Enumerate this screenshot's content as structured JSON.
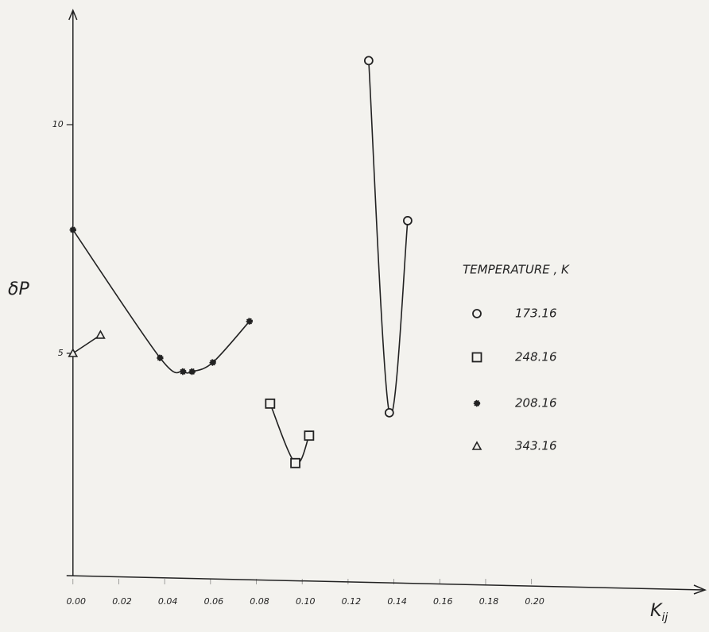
{
  "chart_data": {
    "type": "scatter",
    "y_label": "δP",
    "x_label": "K",
    "x_label_sub": "ij",
    "legend_title": "TEMPERATURE , K",
    "xlim": [
      -0.002,
      0.275
    ],
    "ylim": [
      0,
      12.5
    ],
    "xticks": [
      {
        "value": 0,
        "label": "0.00"
      },
      {
        "value": 0.02,
        "label": "0.02"
      },
      {
        "value": 0.04,
        "label": "0.04"
      },
      {
        "value": 0.06,
        "label": "0.06"
      },
      {
        "value": 0.08,
        "label": "0.08"
      },
      {
        "value": 0.1,
        "label": "0.10"
      },
      {
        "value": 0.12,
        "label": "0.12"
      },
      {
        "value": 0.14,
        "label": "0.14"
      },
      {
        "value": 0.16,
        "label": "0.16"
      },
      {
        "value": 0.18,
        "label": "0.18"
      },
      {
        "value": 0.2,
        "label": "0.20"
      }
    ],
    "yticks": [
      5,
      10
    ],
    "series": [
      {
        "name": "173.16",
        "marker": "circle",
        "color": "#222",
        "x": [
          0.129,
          0.138,
          0.146
        ],
        "values": [
          11.4,
          3.7,
          7.9
        ]
      },
      {
        "name": "248.16",
        "marker": "square",
        "color": "#222",
        "x": [
          0.086,
          0.097,
          0.103
        ],
        "values": [
          3.9,
          2.6,
          3.2
        ]
      },
      {
        "name": "208.16",
        "marker": "star",
        "color": "#222",
        "x": [
          0.0,
          0.038,
          0.048,
          0.052,
          0.061,
          0.077
        ],
        "values": [
          7.7,
          4.9,
          4.6,
          4.6,
          4.8,
          5.7
        ]
      },
      {
        "name": "343.16",
        "marker": "triangle",
        "color": "#222",
        "x": [
          0.0,
          0.012
        ],
        "values": [
          5.0,
          5.4
        ]
      }
    ]
  }
}
